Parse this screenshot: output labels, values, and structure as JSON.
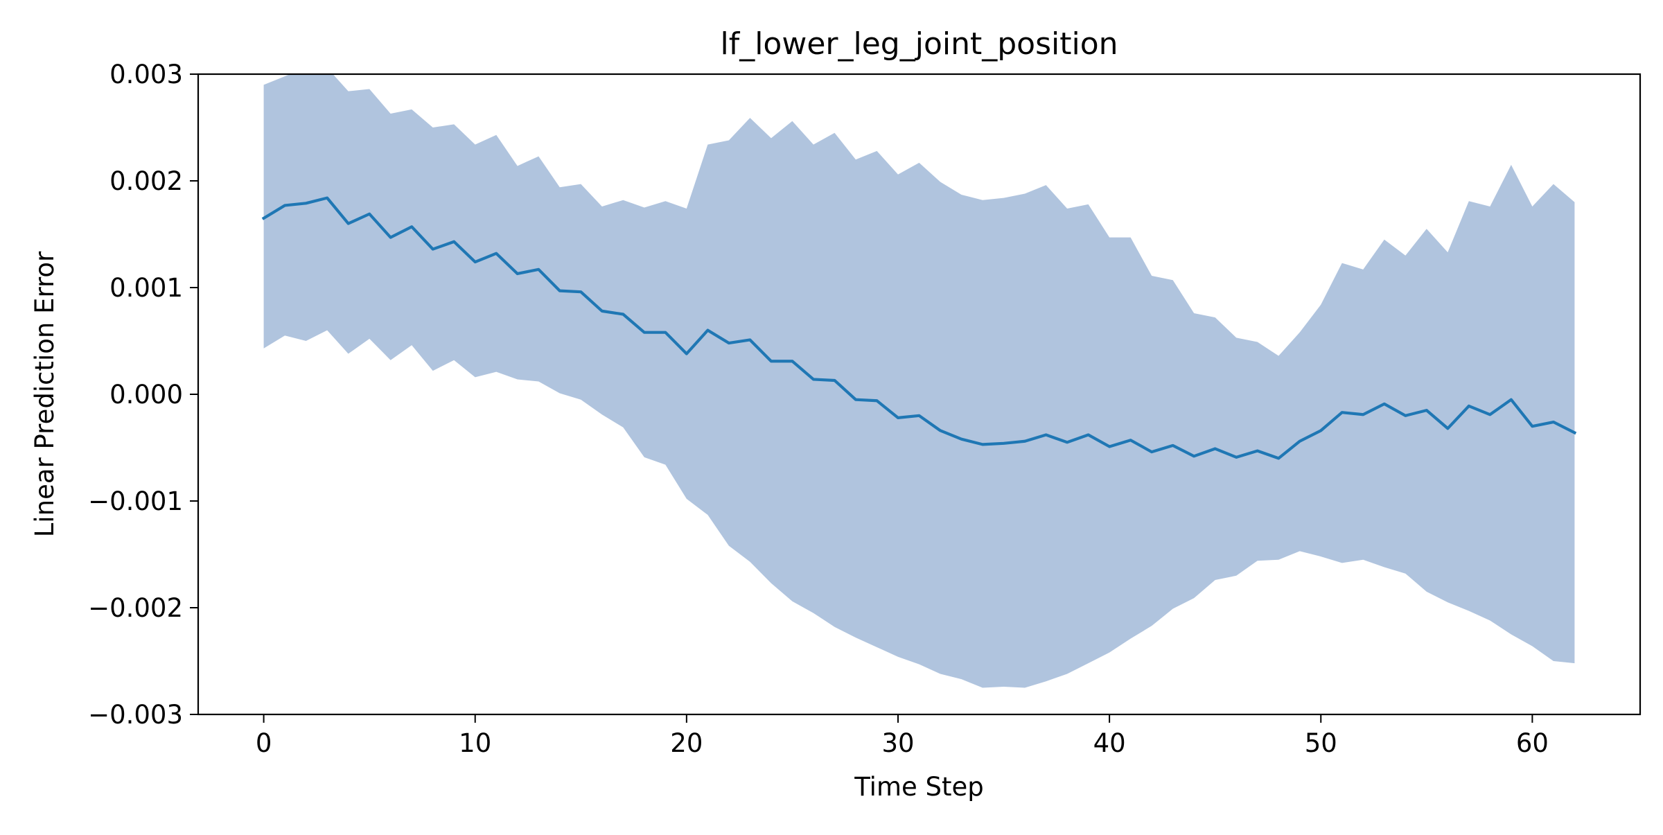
{
  "chart_data": {
    "type": "line",
    "title": "lf_lower_leg_joint_position",
    "xlabel": "Time Step",
    "ylabel": "Linear Prediction Error",
    "xlim": [
      -3.1,
      65.1
    ],
    "ylim": [
      -0.003,
      0.003
    ],
    "x_ticks": [
      0,
      10,
      20,
      30,
      40,
      50,
      60
    ],
    "y_ticks": [
      -0.003,
      -0.002,
      -0.001,
      0.0,
      0.001,
      0.002,
      0.003
    ],
    "x_tick_labels": [
      "0",
      "10",
      "20",
      "30",
      "40",
      "50",
      "60"
    ],
    "y_tick_labels": [
      "−0.003",
      "−0.002",
      "−0.001",
      "0.000",
      "0.001",
      "0.002",
      "0.003"
    ],
    "grid": false,
    "legend": "none",
    "series": [
      {
        "color": "#1f77b4",
        "band_color": "#b0c4de",
        "x": [
          0,
          1,
          2,
          3,
          4,
          5,
          6,
          7,
          8,
          9,
          10,
          11,
          12,
          13,
          14,
          15,
          16,
          17,
          18,
          19,
          20,
          21,
          22,
          23,
          24,
          25,
          26,
          27,
          28,
          29,
          30,
          31,
          32,
          33,
          34,
          35,
          36,
          37,
          38,
          39,
          40,
          41,
          42,
          43,
          44,
          45,
          46,
          47,
          48,
          49,
          50,
          51,
          52,
          53,
          54,
          55,
          56,
          57,
          58,
          59,
          60,
          61,
          62
        ],
        "mean": [
          0.00165,
          0.00177,
          0.00179,
          0.00184,
          0.0016,
          0.00169,
          0.00147,
          0.00157,
          0.00136,
          0.00143,
          0.00124,
          0.00132,
          0.00113,
          0.00117,
          0.00097,
          0.00096,
          0.00078,
          0.00075,
          0.00058,
          0.00058,
          0.00038,
          0.0006,
          0.00048,
          0.00051,
          0.00031,
          0.00031,
          0.00014,
          0.00013,
          -5e-05,
          -6e-05,
          -0.00022,
          -0.0002,
          -0.00034,
          -0.00042,
          -0.00047,
          -0.00046,
          -0.00044,
          -0.00038,
          -0.00045,
          -0.00038,
          -0.00049,
          -0.00043,
          -0.00054,
          -0.00048,
          -0.00058,
          -0.00051,
          -0.00059,
          -0.00053,
          -0.0006,
          -0.00044,
          -0.00034,
          -0.00017,
          -0.00019,
          -9e-05,
          -0.0002,
          -0.00015,
          -0.00032,
          -0.00011,
          -0.00019,
          -5e-05,
          -0.0003,
          -0.00026,
          -0.00036
        ],
        "upper": [
          0.0029,
          0.00298,
          0.00306,
          0.00306,
          0.00284,
          0.00286,
          0.00263,
          0.00267,
          0.0025,
          0.00253,
          0.00234,
          0.00243,
          0.00214,
          0.00223,
          0.00194,
          0.00197,
          0.00176,
          0.00182,
          0.00175,
          0.00181,
          0.00174,
          0.00234,
          0.00238,
          0.00259,
          0.0024,
          0.00256,
          0.00234,
          0.00245,
          0.0022,
          0.00228,
          0.00206,
          0.00217,
          0.00199,
          0.00187,
          0.00182,
          0.00184,
          0.00188,
          0.00196,
          0.00174,
          0.00178,
          0.00147,
          0.00147,
          0.00111,
          0.00107,
          0.00076,
          0.00072,
          0.00053,
          0.00049,
          0.00036,
          0.00058,
          0.00084,
          0.00123,
          0.00117,
          0.00145,
          0.0013,
          0.00155,
          0.00133,
          0.00181,
          0.00176,
          0.00215,
          0.00176,
          0.00197,
          0.0018
        ],
        "lower": [
          0.00043,
          0.00055,
          0.0005,
          0.0006,
          0.00038,
          0.00052,
          0.00032,
          0.00046,
          0.00022,
          0.00032,
          0.00016,
          0.00021,
          0.00014,
          0.00012,
          1e-05,
          -5e-05,
          -0.00019,
          -0.00031,
          -0.00059,
          -0.00066,
          -0.00098,
          -0.00113,
          -0.00142,
          -0.00157,
          -0.00177,
          -0.00194,
          -0.00205,
          -0.00218,
          -0.00228,
          -0.00237,
          -0.00246,
          -0.00253,
          -0.00262,
          -0.00267,
          -0.00275,
          -0.00274,
          -0.00275,
          -0.00269,
          -0.00262,
          -0.00252,
          -0.00242,
          -0.00229,
          -0.00217,
          -0.00201,
          -0.00191,
          -0.00174,
          -0.0017,
          -0.00156,
          -0.00155,
          -0.00147,
          -0.00152,
          -0.00158,
          -0.00155,
          -0.00162,
          -0.00168,
          -0.00185,
          -0.00195,
          -0.00203,
          -0.00212,
          -0.00225,
          -0.00236,
          -0.0025,
          -0.00252
        ]
      }
    ]
  }
}
